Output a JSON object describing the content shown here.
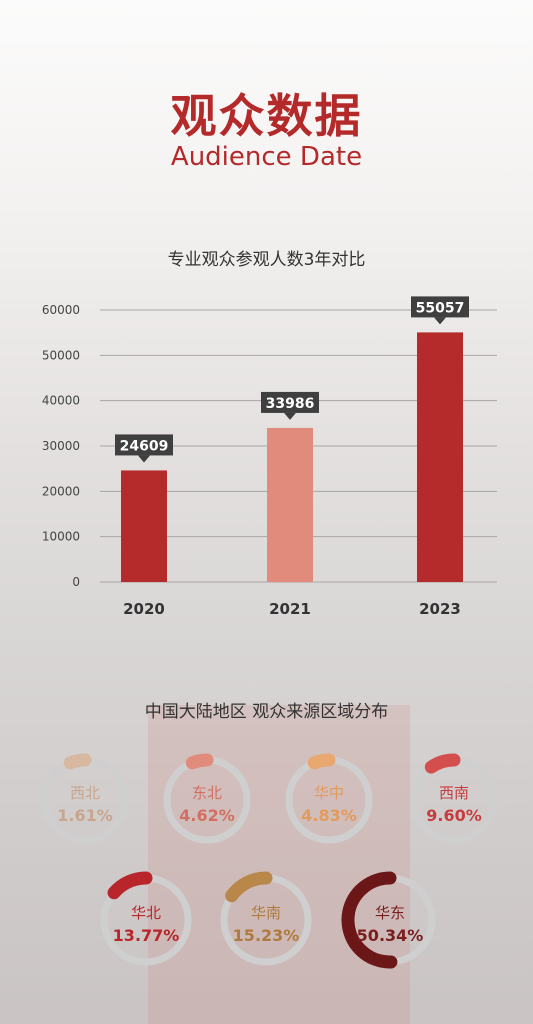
{
  "header": {
    "title": "观众数据",
    "subtitle": "Audience Date"
  },
  "chart_data": [
    {
      "type": "bar",
      "title": "专业观众参观人数3年对比",
      "categories": [
        "2020",
        "2021",
        "2023"
      ],
      "values": [
        24609,
        33986,
        55057
      ],
      "value_labels": [
        "24609",
        "33986",
        "55057"
      ],
      "bar_colors": [
        "#b52a2a",
        "#e08b7c",
        "#b52a2a"
      ],
      "yticks": [
        "0",
        "10000",
        "20000",
        "30000",
        "40000",
        "50000",
        "60000"
      ],
      "ylim": [
        0,
        60000
      ],
      "grid": true
    },
    {
      "type": "pie",
      "title": "中国大陆地区 观众来源区域分布",
      "labels": [
        "西北",
        "东北",
        "华中",
        "西南",
        "华北",
        "华南",
        "华东"
      ],
      "values": [
        1.61,
        4.62,
        4.83,
        9.6,
        13.77,
        15.23,
        50.34
      ],
      "value_labels": [
        "1.61%",
        "4.62%",
        "4.83%",
        "9.60%",
        "13.77%",
        "15.23%",
        "50.34%"
      ],
      "colors": [
        "#d8b8a0",
        "#e08b7c",
        "#e9a86f",
        "#d44e4e",
        "#b8262b",
        "#b9874a",
        "#6b1718"
      ]
    }
  ]
}
